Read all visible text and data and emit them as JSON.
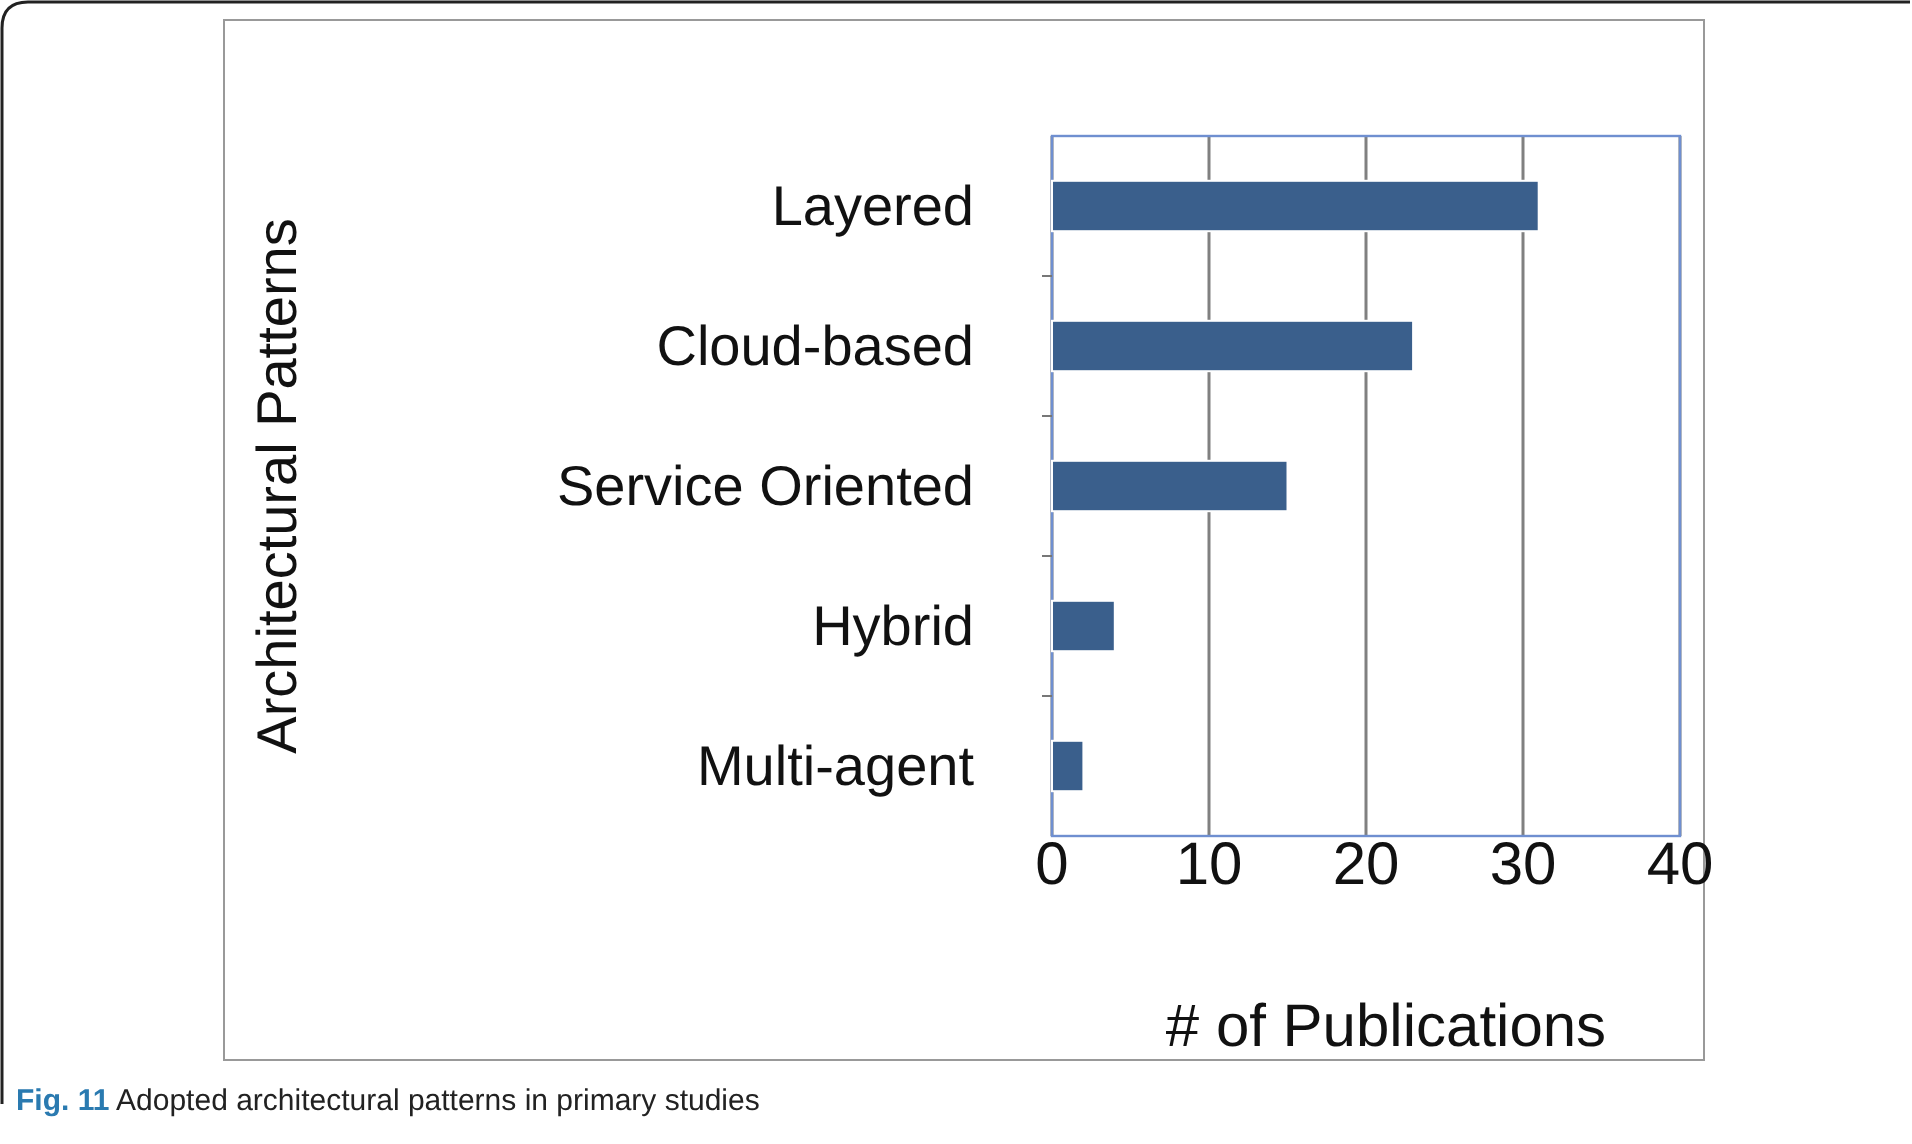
{
  "chart_data": {
    "type": "bar",
    "orientation": "horizontal",
    "categories": [
      "Layered",
      "Cloud-based",
      "Service Oriented",
      "Hybrid",
      "Multi-agent"
    ],
    "values": [
      31,
      23,
      15,
      4,
      2
    ],
    "color": "#3a5f8c",
    "xlim": [
      0,
      40
    ],
    "xticks": [
      0,
      10,
      20,
      30,
      40
    ],
    "grid": "x",
    "xlabel": "# of Publications",
    "ylabel": "Architectural Patterns",
    "annotations": [
      "Fig. 11 Adopted architectural patterns in primary studies"
    ]
  }
}
